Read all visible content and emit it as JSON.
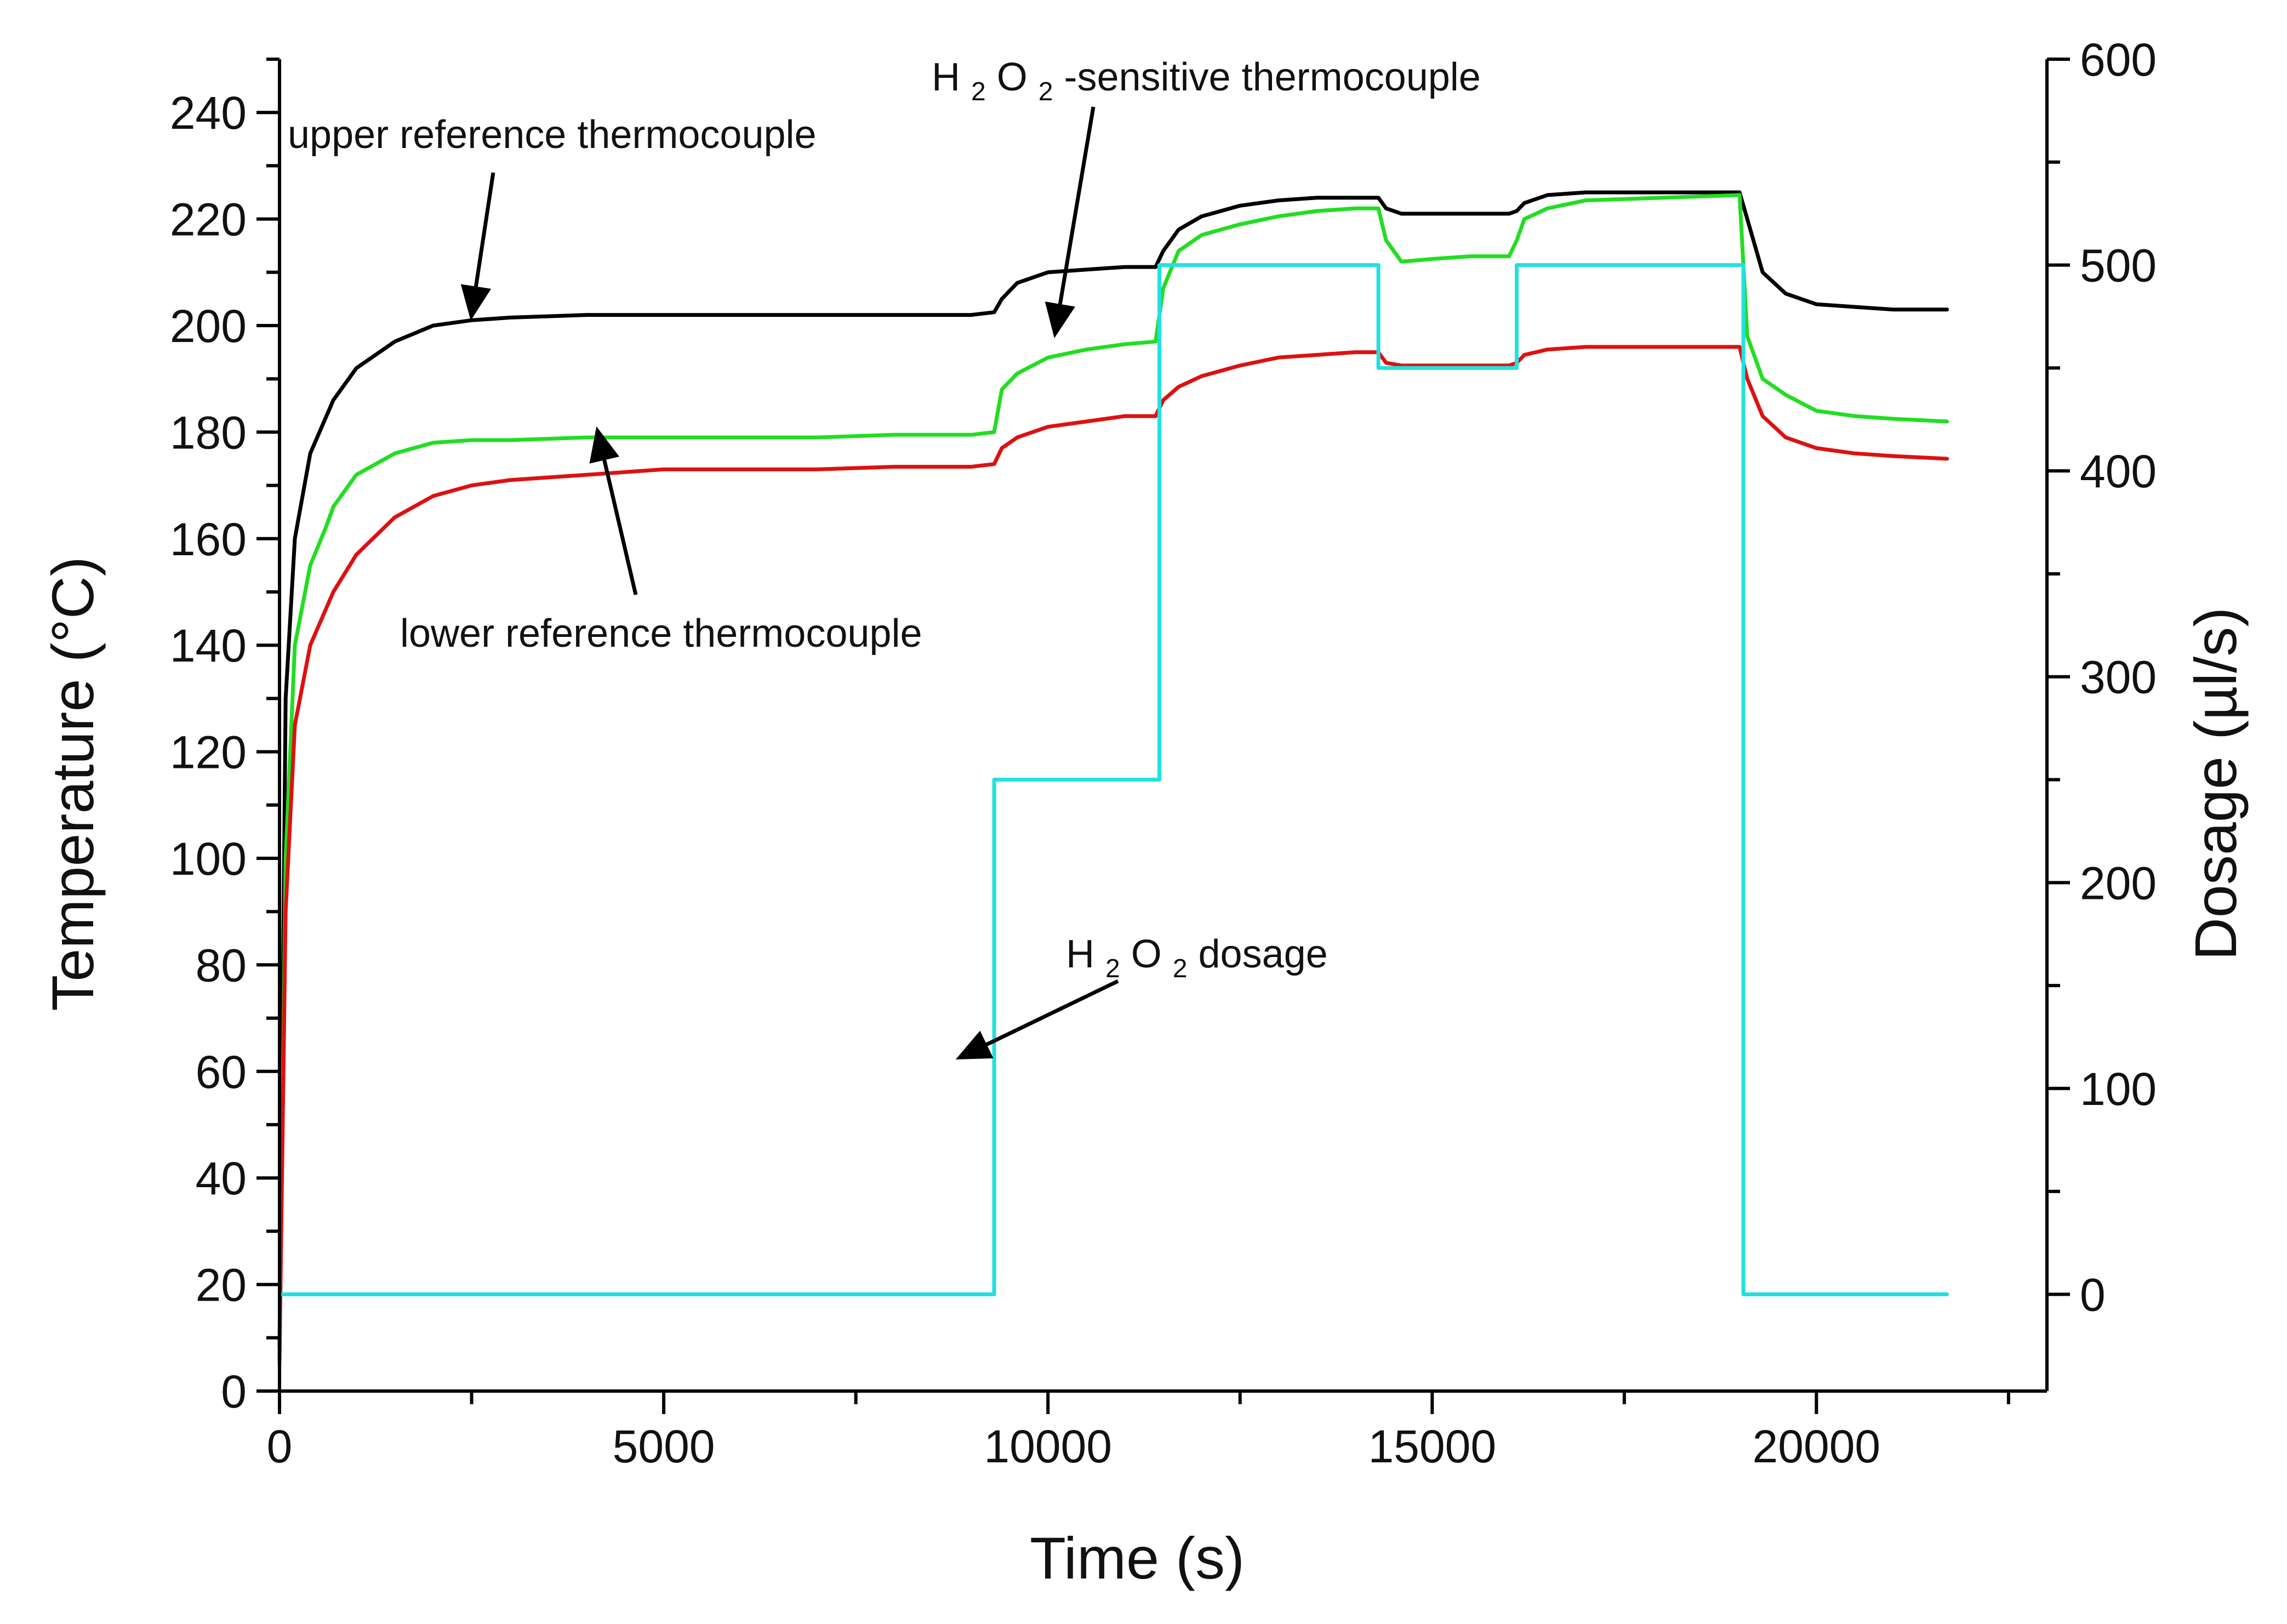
{
  "chart_data": {
    "type": "line",
    "xlabel": "Time (s)",
    "ylabel": "Temperature (°C)",
    "y2label": "Dosage (µl/s)",
    "xlim": [
      0,
      23000
    ],
    "ylim": [
      0,
      250
    ],
    "y2lim": [
      -47,
      600
    ],
    "xticks": [
      0,
      5000,
      10000,
      15000,
      20000
    ],
    "xtick_labels": [
      "0",
      "5000",
      "10000",
      "15000",
      "20000"
    ],
    "yticks": [
      0,
      20,
      40,
      60,
      80,
      100,
      120,
      140,
      160,
      180,
      200,
      220,
      240
    ],
    "ytick_labels": [
      "0",
      "20",
      "40",
      "60",
      "80",
      "100",
      "120",
      "140",
      "160",
      "180",
      "200",
      "220",
      "240"
    ],
    "y2ticks": [
      0,
      100,
      200,
      300,
      400,
      500,
      600
    ],
    "y2tick_labels": [
      "0",
      "100",
      "200",
      "300",
      "400",
      "500",
      "600"
    ],
    "series": [
      {
        "name": "upper reference thermocouple",
        "axis": "left",
        "color": "#000000",
        "x": [
          0,
          80,
          200,
          400,
          700,
          1000,
          1500,
          2000,
          2500,
          3000,
          4000,
          5000,
          6000,
          7000,
          8000,
          9000,
          9300,
          9400,
          9600,
          10000,
          10500,
          11000,
          11400,
          11500,
          11700,
          12000,
          12500,
          13000,
          13500,
          14000,
          14300,
          14400,
          14600,
          15000,
          15500,
          16000,
          16100,
          16200,
          16500,
          17000,
          18000,
          19000,
          19100,
          19300,
          19600,
          20000,
          20500,
          21000,
          21700
        ],
        "values": [
          8,
          130,
          160,
          176,
          186,
          192,
          197,
          200,
          201,
          201.5,
          202,
          202,
          202,
          202,
          202,
          202,
          202.5,
          205,
          208,
          210,
          210.5,
          211,
          211,
          214,
          218,
          220.5,
          222.5,
          223.5,
          224,
          224,
          224,
          222,
          221,
          221,
          221,
          221,
          221.5,
          223,
          224.5,
          225,
          225,
          225,
          220,
          210,
          206,
          204,
          203.5,
          203,
          203
        ]
      },
      {
        "name": "H2O2-sensitive thermocouple",
        "axis": "left",
        "color": "#22dd22",
        "x": [
          0,
          80,
          200,
          400,
          600,
          700,
          1000,
          1500,
          2000,
          2500,
          3000,
          4000,
          5000,
          6000,
          7000,
          8000,
          9000,
          9300,
          9400,
          9600,
          10000,
          10500,
          11000,
          11400,
          11500,
          11700,
          12000,
          12500,
          13000,
          13500,
          14000,
          14300,
          14400,
          14600,
          15000,
          15500,
          16000,
          16100,
          16200,
          16500,
          17000,
          18000,
          19000,
          19100,
          19300,
          19600,
          20000,
          20500,
          21000,
          21700
        ],
        "values": [
          5,
          100,
          140,
          155,
          162,
          166,
          172,
          176,
          178,
          178.5,
          178.5,
          179,
          179,
          179,
          179,
          179.5,
          179.5,
          180,
          188,
          191,
          194,
          195.5,
          196.5,
          197,
          207,
          214,
          217,
          219,
          220.5,
          221.5,
          222,
          222,
          216,
          212,
          212.5,
          213,
          213,
          216,
          220,
          222,
          223.5,
          224,
          224.5,
          198,
          190,
          187,
          184,
          183,
          182.5,
          182
        ]
      },
      {
        "name": "lower reference thermocouple",
        "axis": "left",
        "color": "#dd1111",
        "x": [
          0,
          80,
          200,
          400,
          700,
          1000,
          1500,
          2000,
          2500,
          3000,
          4000,
          5000,
          6000,
          7000,
          8000,
          9000,
          9300,
          9400,
          9600,
          10000,
          10500,
          11000,
          11400,
          11500,
          11700,
          12000,
          12500,
          13000,
          13500,
          14000,
          14300,
          14400,
          14600,
          15000,
          15500,
          16000,
          16100,
          16200,
          16500,
          17000,
          18000,
          19000,
          19100,
          19300,
          19600,
          20000,
          20500,
          21000,
          21700
        ],
        "values": [
          6,
          90,
          125,
          140,
          150,
          157,
          164,
          168,
          170,
          171,
          172,
          173,
          173,
          173,
          173.5,
          173.5,
          174,
          177,
          179,
          181,
          182,
          183,
          183,
          186,
          188.5,
          190.5,
          192.5,
          194,
          194.5,
          195,
          195,
          193,
          192.5,
          192.5,
          192.5,
          192.5,
          193,
          194.5,
          195.5,
          196,
          196,
          196,
          190,
          183,
          179,
          177,
          176,
          175.5,
          175
        ]
      },
      {
        "name": "H2O2 dosage",
        "axis": "right",
        "color": "#22e0e0",
        "x": [
          0,
          9300,
          9300,
          11450,
          11450,
          14300,
          14300,
          16100,
          16100,
          19050,
          19050,
          21700
        ],
        "values": [
          0,
          0,
          250,
          250,
          500,
          500,
          450,
          450,
          500,
          500,
          0,
          0
        ]
      }
    ],
    "annotations": [
      {
        "text": "upper reference thermocouple"
      },
      {
        "text": "H",
        "sub1": "2",
        "mid": "O",
        "sub2": "2",
        "tail": "-sensitive thermocouple"
      },
      {
        "text": "lower reference thermocouple"
      },
      {
        "text": "H",
        "sub1": "2",
        "mid": "O",
        "sub2": "2",
        "tail": " dosage"
      }
    ]
  }
}
